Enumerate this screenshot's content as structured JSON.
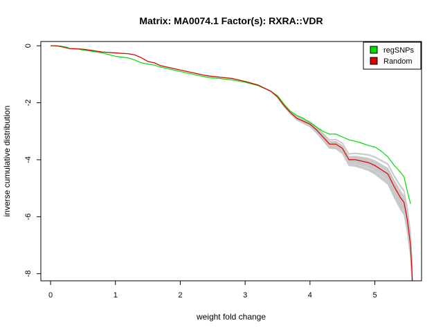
{
  "chart_data": {
    "type": "line",
    "title": "Matrix: MA0074.1 Factor(s): RXRA::VDR",
    "xlabel": "weight fold change",
    "ylabel": "inverse cumulative distribution",
    "xlim": [
      -0.15,
      5.72
    ],
    "ylim": [
      -8.25,
      0.15
    ],
    "x_ticks": [
      0,
      1,
      2,
      3,
      4,
      5
    ],
    "y_ticks": [
      0,
      -2,
      -4,
      -6,
      -8
    ],
    "legend_position": "top-right",
    "grid": false,
    "series": [
      {
        "name": "regSNPs",
        "color": "#00dd00",
        "points": [
          [
            0,
            0
          ],
          [
            0.15,
            -0.01
          ],
          [
            0.25,
            -0.05
          ],
          [
            0.3,
            -0.1
          ],
          [
            0.4,
            -0.1
          ],
          [
            0.5,
            -0.15
          ],
          [
            0.6,
            -0.18
          ],
          [
            0.8,
            -0.25
          ],
          [
            1.0,
            -0.37
          ],
          [
            1.2,
            -0.43
          ],
          [
            1.3,
            -0.5
          ],
          [
            1.4,
            -0.6
          ],
          [
            1.6,
            -0.68
          ],
          [
            1.7,
            -0.75
          ],
          [
            1.8,
            -0.8
          ],
          [
            2.0,
            -0.9
          ],
          [
            2.2,
            -1.0
          ],
          [
            2.4,
            -1.1
          ],
          [
            2.6,
            -1.15
          ],
          [
            2.8,
            -1.2
          ],
          [
            3.0,
            -1.28
          ],
          [
            3.2,
            -1.4
          ],
          [
            3.4,
            -1.6
          ],
          [
            3.5,
            -1.75
          ],
          [
            3.6,
            -2.05
          ],
          [
            3.7,
            -2.3
          ],
          [
            3.8,
            -2.45
          ],
          [
            3.9,
            -2.55
          ],
          [
            4.0,
            -2.7
          ],
          [
            4.1,
            -2.85
          ],
          [
            4.2,
            -3.0
          ],
          [
            4.3,
            -3.1
          ],
          [
            4.4,
            -3.1
          ],
          [
            4.5,
            -3.2
          ],
          [
            4.6,
            -3.3
          ],
          [
            4.7,
            -3.35
          ],
          [
            4.8,
            -3.42
          ],
          [
            4.9,
            -3.5
          ],
          [
            5.0,
            -3.55
          ],
          [
            5.1,
            -3.7
          ],
          [
            5.2,
            -3.9
          ],
          [
            5.3,
            -4.2
          ],
          [
            5.4,
            -4.45
          ],
          [
            5.45,
            -4.6
          ],
          [
            5.5,
            -5.1
          ],
          [
            5.55,
            -5.55
          ]
        ]
      },
      {
        "name": "Random",
        "color": "#dd0000",
        "points": [
          [
            0,
            0
          ],
          [
            0.1,
            0
          ],
          [
            0.2,
            -0.05
          ],
          [
            0.3,
            -0.1
          ],
          [
            0.5,
            -0.12
          ],
          [
            0.6,
            -0.15
          ],
          [
            0.8,
            -0.22
          ],
          [
            1.0,
            -0.25
          ],
          [
            1.2,
            -0.28
          ],
          [
            1.3,
            -0.32
          ],
          [
            1.4,
            -0.42
          ],
          [
            1.5,
            -0.55
          ],
          [
            1.6,
            -0.6
          ],
          [
            1.7,
            -0.7
          ],
          [
            1.8,
            -0.75
          ],
          [
            2.0,
            -0.85
          ],
          [
            2.2,
            -0.95
          ],
          [
            2.4,
            -1.05
          ],
          [
            2.6,
            -1.1
          ],
          [
            2.8,
            -1.15
          ],
          [
            3.0,
            -1.25
          ],
          [
            3.2,
            -1.38
          ],
          [
            3.4,
            -1.6
          ],
          [
            3.5,
            -1.8
          ],
          [
            3.6,
            -2.1
          ],
          [
            3.7,
            -2.35
          ],
          [
            3.8,
            -2.55
          ],
          [
            3.9,
            -2.65
          ],
          [
            4.0,
            -2.75
          ],
          [
            4.1,
            -2.95
          ],
          [
            4.2,
            -3.2
          ],
          [
            4.3,
            -3.45
          ],
          [
            4.4,
            -3.45
          ],
          [
            4.5,
            -3.6
          ],
          [
            4.6,
            -4.0
          ],
          [
            4.7,
            -4.0
          ],
          [
            4.8,
            -4.05
          ],
          [
            4.9,
            -4.1
          ],
          [
            5.0,
            -4.2
          ],
          [
            5.1,
            -4.35
          ],
          [
            5.2,
            -4.5
          ],
          [
            5.3,
            -4.95
          ],
          [
            5.4,
            -5.35
          ],
          [
            5.45,
            -5.5
          ],
          [
            5.5,
            -6.1
          ],
          [
            5.55,
            -7.0
          ],
          [
            5.58,
            -8.3
          ]
        ]
      }
    ]
  }
}
